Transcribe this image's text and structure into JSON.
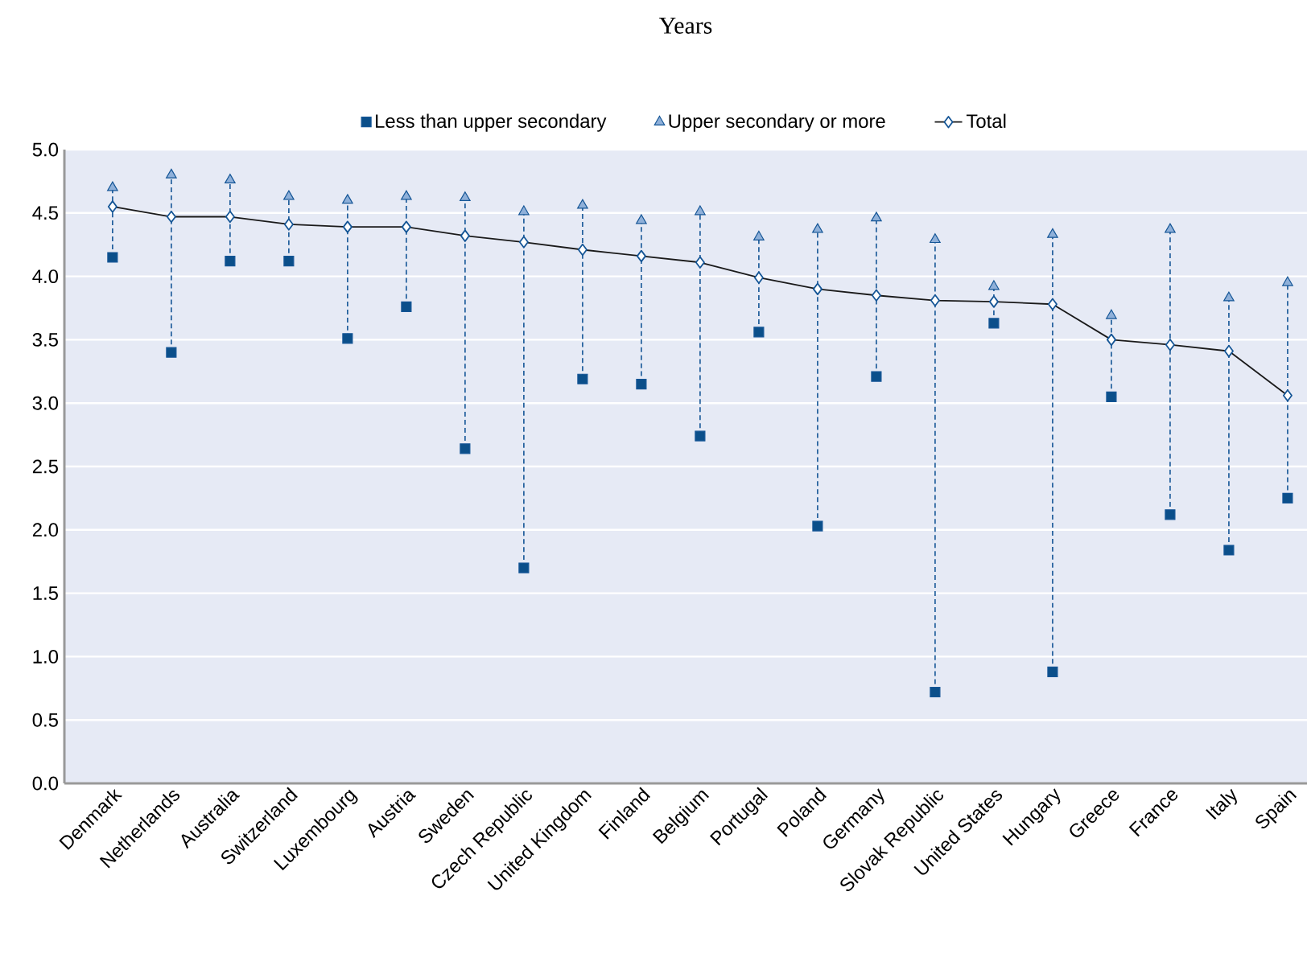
{
  "chart_data": {
    "type": "line",
    "title": "Years",
    "categories": [
      "Denmark",
      "Netherlands",
      "Australia",
      "Switzerland",
      "Luxembourg",
      "Austria",
      "Sweden",
      "Czech Republic",
      "United Kingdom",
      "Finland",
      "Belgium",
      "Portugal",
      "Poland",
      "Germany",
      "Slovak Republic",
      "United States",
      "Hungary",
      "Greece",
      "France",
      "Italy",
      "Spain"
    ],
    "series": [
      {
        "name": "Less than upper secondary",
        "type": "scatter",
        "marker": "square",
        "color": "#0b4f8a",
        "values": [
          4.15,
          3.4,
          4.12,
          4.12,
          3.51,
          3.76,
          2.64,
          1.7,
          3.19,
          3.15,
          2.74,
          3.56,
          2.03,
          3.21,
          0.72,
          3.63,
          0.88,
          3.05,
          2.12,
          1.84,
          2.25
        ]
      },
      {
        "name": "Upper secondary or more",
        "type": "scatter",
        "marker": "triangle",
        "color": "#8fb0d9",
        "values": [
          4.7,
          4.8,
          4.76,
          4.63,
          4.6,
          4.63,
          4.62,
          4.51,
          4.56,
          4.44,
          4.51,
          4.31,
          4.37,
          4.46,
          4.29,
          3.92,
          4.33,
          3.69,
          4.37,
          3.83,
          3.95
        ]
      },
      {
        "name": "Total",
        "marker": "diamond",
        "color": "#1a1a1a",
        "values": [
          4.55,
          4.47,
          4.47,
          4.41,
          4.39,
          4.39,
          4.32,
          4.27,
          4.21,
          4.16,
          4.11,
          3.99,
          3.9,
          3.85,
          3.81,
          3.8,
          3.78,
          3.5,
          3.46,
          3.41,
          3.06
        ]
      }
    ],
    "ylim": [
      0,
      5
    ],
    "yticks": [
      {
        "value": 0,
        "label": "0.0"
      },
      {
        "value": 0.5,
        "label": "0.5"
      },
      {
        "value": 1,
        "label": "1.0"
      },
      {
        "value": 1.5,
        "label": "1.5"
      },
      {
        "value": 2,
        "label": "2.0"
      },
      {
        "value": 2.5,
        "label": "2.5"
      },
      {
        "value": 3,
        "label": "3.0"
      },
      {
        "value": 3.5,
        "label": "3.5"
      },
      {
        "value": 4,
        "label": "4.0"
      },
      {
        "value": 4.5,
        "label": "4.5"
      },
      {
        "value": 5,
        "label": "5.0"
      }
    ],
    "grid": "y",
    "legend": "top"
  }
}
